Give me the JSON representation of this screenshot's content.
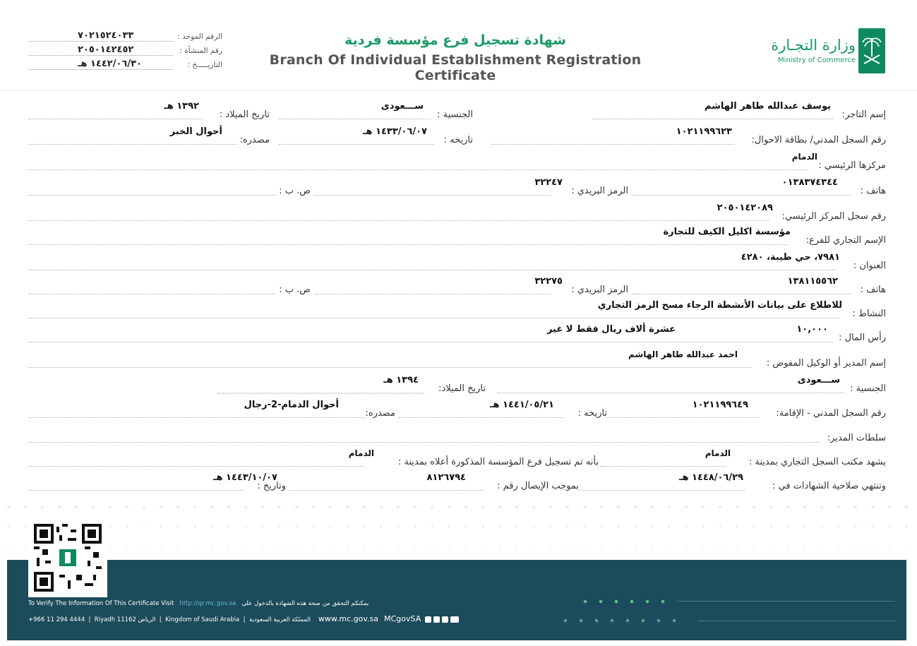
{
  "header": {
    "title_ar": "شهادة تسجيل فرع مؤسسة فردية",
    "title_en": "Branch Of Individual Establishment Registration Certificate",
    "ministry_ar": "وزارة التجـارة",
    "ministry_en": "Ministry of Commerce",
    "unified_number_label": "الرقم الموحد :",
    "unified_number": "٧٠٢١٥٢٤٠٣٣",
    "establishment_number_label": "رقم المنشأة :",
    "establishment_number": "٢٠٥٠١٤٢٤٥٢",
    "date_label": "التاريـــــخ :",
    "date": "١٤٤٢/٠٦/٣٠ هـ"
  },
  "rows": {
    "merchant": {
      "name_label": "إسم التاجر:",
      "name": "يوسف عبدالله طاهر الهاشم",
      "nationality_label": "الجنسية :",
      "nationality": "ســـعودى",
      "birth_label": "تاريخ الميلاد :",
      "birth": "١٣٩٢ هـ"
    },
    "id_card": {
      "label": "رقم السجل المدني/ بطاقة الاحوال:",
      "value": "١٠٢١١٩٩٦٢٣",
      "date_label": "تاريخه :",
      "date": "١٤٣٣/٠٦/٠٧ هـ",
      "source_label": "مصدره:",
      "source": "أحوال الخبر"
    },
    "hq": {
      "label": "مركزها الرئيسي :",
      "value": "الدمام"
    },
    "phone1": {
      "label": "هاتف :",
      "value": "٠١٣٨٣٧٤٣٤٤",
      "postal_label": "الرمز البريدي :",
      "postal": "٣٢٢٤٧",
      "pobox_label": "ص. ب :",
      "pobox": ""
    },
    "hq_reg": {
      "label": "رقم سجل المركز الرئيسي:",
      "value": "٢٠٥٠١٤٢٠٨٩"
    },
    "trade_name": {
      "label": "الإسم التجاري للفرع:",
      "value": "مؤسسة اكليل الكيف للتجارة"
    },
    "address": {
      "label": "العنوان :",
      "value": "٧٩٨١، حي طيبة، ٤٢٨٠"
    },
    "phone2": {
      "label": "هاتف :",
      "value": "١٣٨١١٥٥٦٢",
      "postal_label": "الرمز البريدي :",
      "postal": "٣٢٢٧٥",
      "pobox_label": "ص. ب :",
      "pobox": ""
    },
    "activity": {
      "label": "النشاط :",
      "value": "للاطلاع على بيانات الأنشطة الرجاء مسح الرمز التجاري"
    },
    "capital": {
      "label": "رأس المال :",
      "value": "١٠,٠٠٠",
      "words": "عشرة ألاف   ريال  فقط لا غير"
    },
    "manager": {
      "label": "إسم المدير أو الوكيل المفوض :",
      "value": "احمد عبدالله طاهر الهاشم"
    },
    "manager_nat": {
      "label": "الجنسية :",
      "value": "ســـعودى",
      "birth_label": "تاريخ الميلاد:",
      "birth": "١٣٩٤ هـ"
    },
    "manager_id": {
      "label": "رقم السجل المدني - الإقامة:",
      "value": "١٠٢١١٩٩٦٤٩",
      "date_label": "تاريخه :",
      "date": "١٤٤١/٠٥/٢١ هـ",
      "source_label": "مصدره:",
      "source": "أحوال الدمام-2-رجال"
    },
    "manager_powers": {
      "label": "سلطات المدير:"
    },
    "certify": {
      "label": "يشهد مكتب السجل التجاري بمدينة :",
      "city": "الدمام",
      "mid_label": "بأنه تم تسجيل فرع المؤسسة المذكورة أعلاه بمدينة :",
      "city2": "الدمام"
    },
    "expiry": {
      "label": "وتنتهي صلاحية الشهادات في :",
      "value": "١٤٤٨/٠٦/٢٩ هـ",
      "receipt_label": "بموجب الإيصال رقم :",
      "receipt": "٨١٢٦٧٩٤",
      "date_label": "وتاريخ :",
      "date": "١٤٤٣/١٠/٠٧ هـ"
    }
  },
  "footer": {
    "verify_en": "To Verify The Information Of This Certificate Visit",
    "verify_link": "http://qr.mc.gov.sa",
    "verify_ar": "يمكنكم التحقق من صحة هذه الشهادة بالدخول على",
    "phone": "+966 11 294 4444",
    "city_en": "Riyadh 11162",
    "city_ar": "الرياض",
    "kingdom_en": "Kingdom of Saudi Arabia",
    "kingdom_ar": "المملكة العربية السعودية",
    "website": "www.mc.gov.sa",
    "handle": "MCgovSA",
    "colors": {
      "band": "#1c4b5c",
      "accent": "#1a9a66"
    },
    "social_icons": [
      "instagram-icon",
      "facebook-icon",
      "twitter-icon",
      "youtube-icon"
    ]
  }
}
